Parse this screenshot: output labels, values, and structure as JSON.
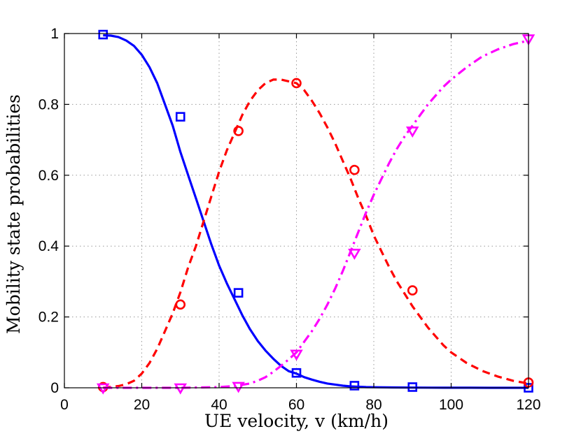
{
  "chart_data": {
    "type": "line",
    "xlabel": "UE velocity, v (km/h)",
    "ylabel": "Mobility state probabilities",
    "xlim": [
      0,
      120
    ],
    "ylim": [
      0,
      1
    ],
    "xticks": [
      "0",
      "20",
      "40",
      "60",
      "80",
      "100",
      "120"
    ],
    "yticks": [
      "0",
      "0.2",
      "0.4",
      "0.6",
      "0.8",
      "1"
    ],
    "grid": true,
    "series": [
      {
        "color": "#0000ff",
        "line_style": "solid",
        "marker": "square",
        "curve": {
          "x": [
            10,
            12,
            14,
            16,
            18,
            20,
            22,
            24,
            26,
            28,
            30,
            32,
            34,
            36,
            38,
            40,
            42,
            44,
            46,
            48,
            50,
            52,
            54,
            56,
            58,
            60,
            62,
            64,
            66,
            68,
            70,
            72,
            74,
            76,
            78,
            80,
            85,
            90,
            95,
            100,
            105,
            110,
            115,
            120
          ],
          "y": [
            0.995,
            0.994,
            0.99,
            0.98,
            0.965,
            0.94,
            0.905,
            0.86,
            0.8,
            0.74,
            0.665,
            0.6,
            0.535,
            0.47,
            0.405,
            0.345,
            0.295,
            0.25,
            0.205,
            0.165,
            0.132,
            0.105,
            0.082,
            0.062,
            0.047,
            0.04,
            0.03,
            0.023,
            0.017,
            0.012,
            0.009,
            0.006,
            0.004,
            0.003,
            0.002,
            0.0015,
            0.001,
            0.0005,
            0.0003,
            0.0002,
            0.0001,
            0,
            0,
            0
          ]
        },
        "markers": {
          "x": [
            10,
            30,
            45,
            60,
            75,
            90,
            120
          ],
          "y": [
            0.997,
            0.765,
            0.268,
            0.042,
            0.006,
            0.002,
            0.0
          ]
        }
      },
      {
        "color": "#ff0000",
        "line_style": "dashed",
        "marker": "circle",
        "curve": {
          "x": [
            10,
            14,
            16,
            18,
            20,
            22,
            24,
            26,
            28,
            30,
            32,
            34,
            36,
            38,
            40,
            42,
            44,
            46,
            48,
            50,
            52,
            54,
            56,
            58,
            60,
            62,
            64,
            66,
            68,
            70,
            72,
            74,
            76,
            78,
            80,
            82,
            84,
            86,
            88,
            90,
            92,
            94,
            96,
            98,
            100,
            104,
            108,
            112,
            116,
            120
          ],
          "y": [
            0.0,
            0.005,
            0.01,
            0.02,
            0.04,
            0.07,
            0.11,
            0.16,
            0.21,
            0.27,
            0.34,
            0.4,
            0.47,
            0.54,
            0.61,
            0.67,
            0.72,
            0.77,
            0.81,
            0.84,
            0.86,
            0.87,
            0.87,
            0.865,
            0.86,
            0.84,
            0.81,
            0.775,
            0.735,
            0.69,
            0.64,
            0.59,
            0.535,
            0.485,
            0.43,
            0.385,
            0.34,
            0.3,
            0.265,
            0.23,
            0.2,
            0.17,
            0.145,
            0.12,
            0.1,
            0.07,
            0.048,
            0.032,
            0.02,
            0.012
          ]
        },
        "markers": {
          "x": [
            10,
            30,
            45,
            60,
            75,
            90,
            120
          ],
          "y": [
            0.002,
            0.235,
            0.725,
            0.86,
            0.615,
            0.275,
            0.015
          ]
        }
      },
      {
        "color": "#ff00ff",
        "line_style": "dash-dot",
        "marker": "triangle-down",
        "curve": {
          "x": [
            10,
            20,
            30,
            40,
            44,
            48,
            50,
            52,
            54,
            56,
            58,
            60,
            62,
            64,
            66,
            68,
            70,
            72,
            74,
            76,
            78,
            80,
            82,
            84,
            86,
            88,
            90,
            92,
            94,
            96,
            98,
            100,
            104,
            108,
            112,
            116,
            120
          ],
          "y": [
            0.0,
            0.0,
            0.0,
            0.002,
            0.005,
            0.012,
            0.02,
            0.03,
            0.045,
            0.062,
            0.08,
            0.1,
            0.13,
            0.16,
            0.195,
            0.235,
            0.28,
            0.33,
            0.385,
            0.44,
            0.495,
            0.545,
            0.59,
            0.635,
            0.675,
            0.71,
            0.74,
            0.77,
            0.8,
            0.825,
            0.85,
            0.87,
            0.905,
            0.935,
            0.955,
            0.97,
            0.98
          ]
        },
        "markers": {
          "x": [
            10,
            30,
            45,
            60,
            75,
            90,
            120
          ],
          "y": [
            0.0,
            0.0,
            0.004,
            0.095,
            0.38,
            0.725,
            0.985
          ]
        }
      }
    ]
  }
}
